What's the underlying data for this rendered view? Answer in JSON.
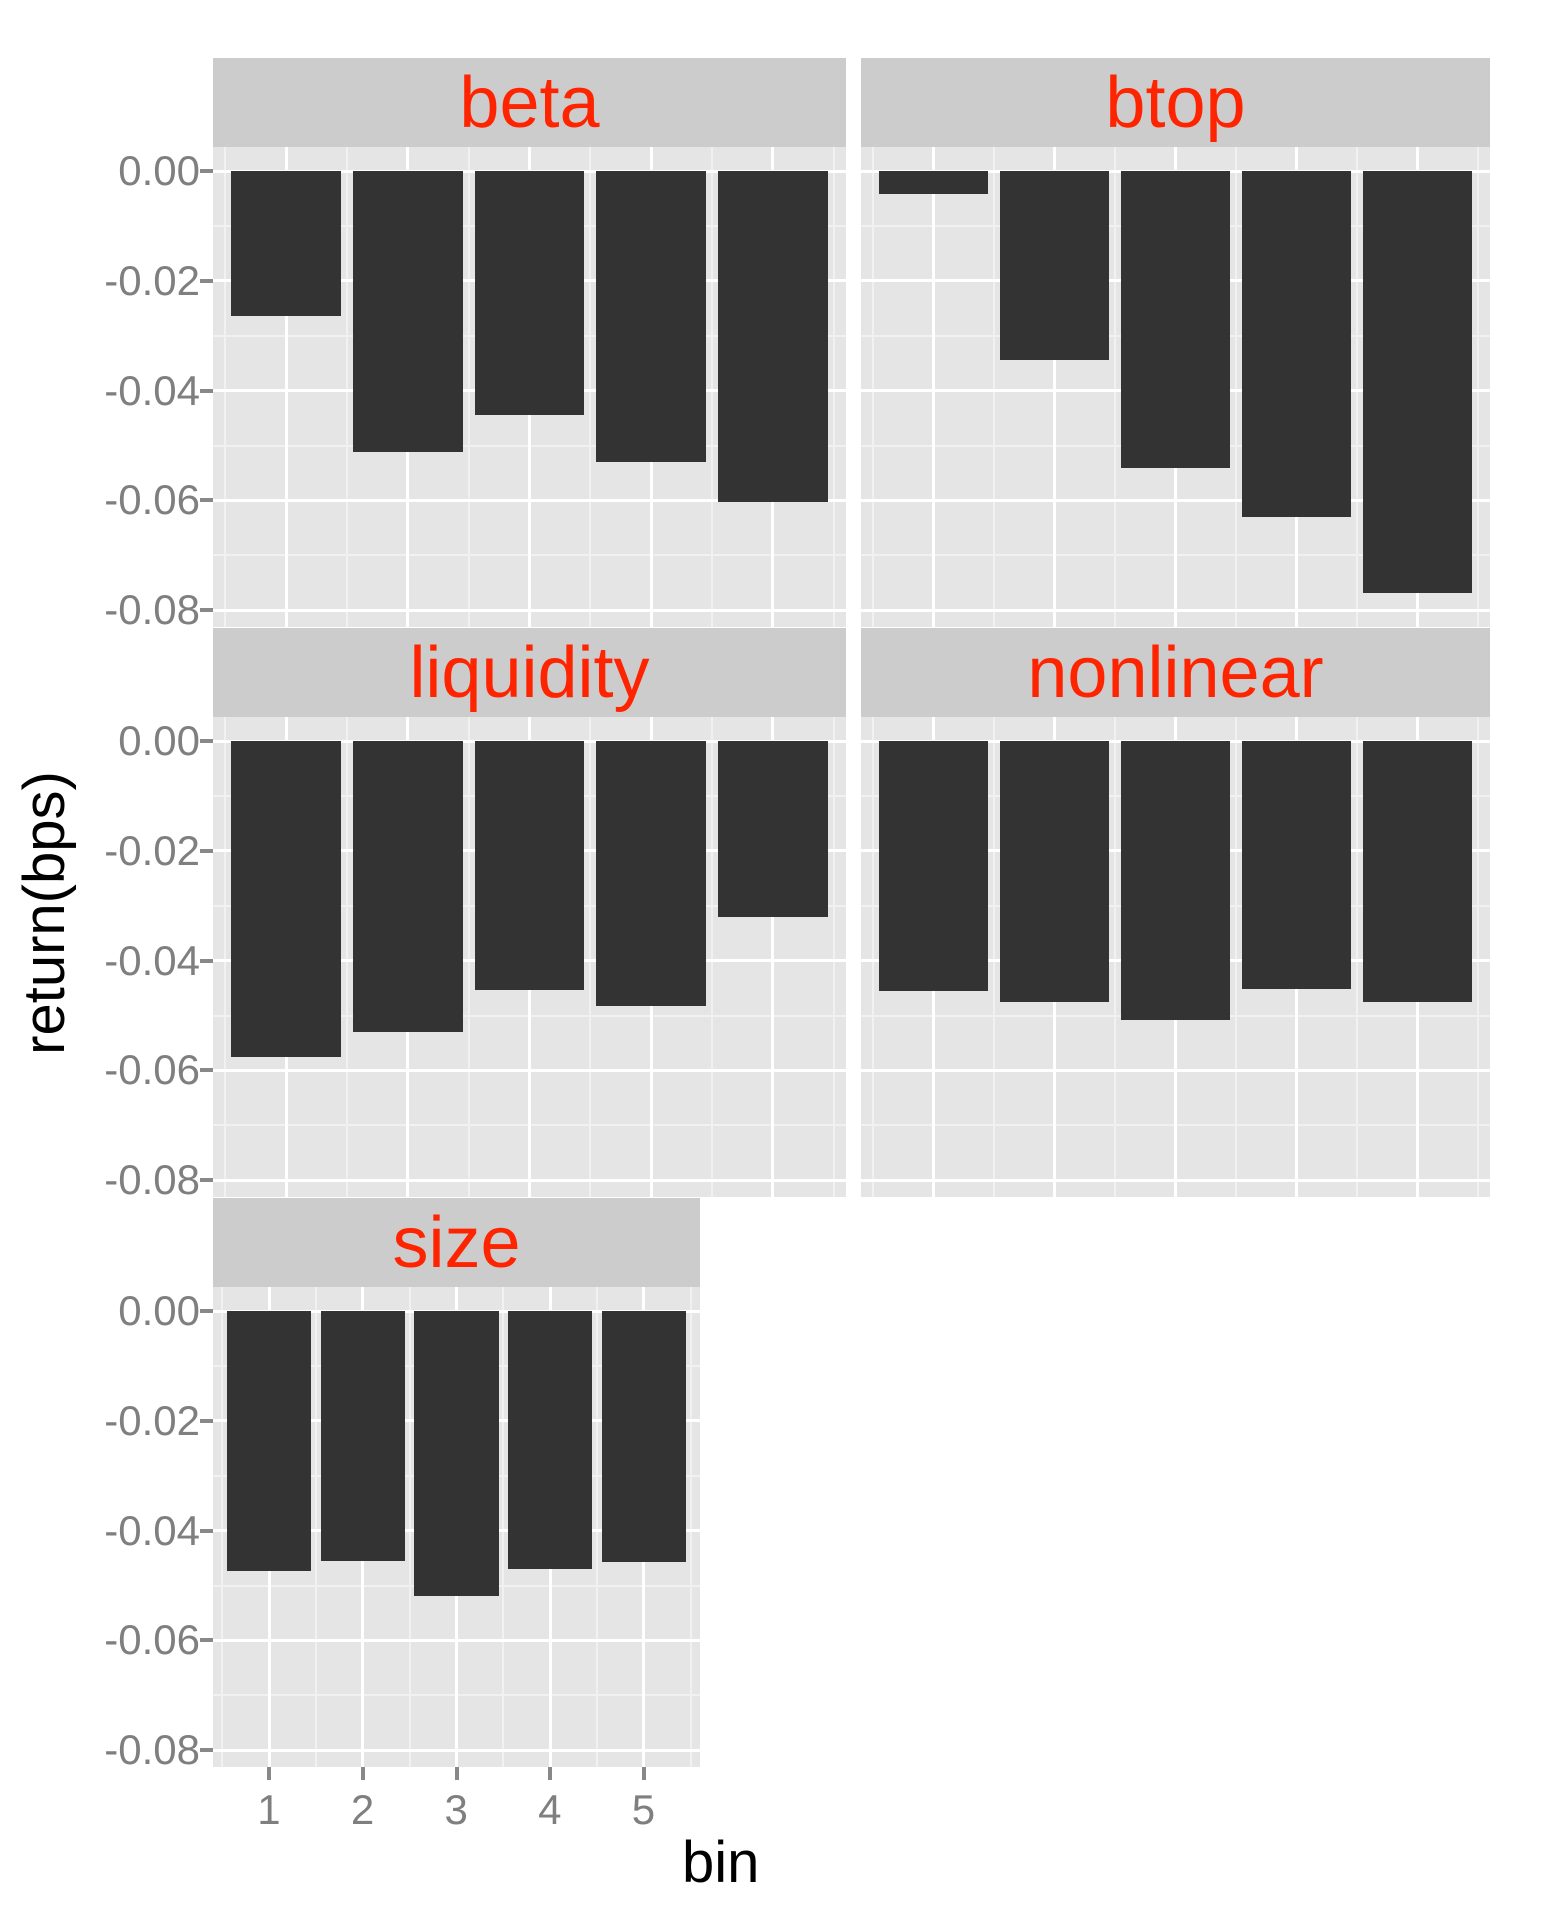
{
  "figure": {
    "y_axis_title": "return(bps)",
    "x_axis_title": "bin",
    "y_tick_labels": [
      "0.00",
      "-0.02",
      "-0.04",
      "-0.06",
      "-0.08"
    ],
    "x_tick_labels": [
      "1",
      "2",
      "3",
      "4",
      "5"
    ]
  },
  "colors": {
    "bar_fill": "#333333",
    "panel_background": "#e5e5e5",
    "strip_background": "#cccccc",
    "strip_text": "#ff2400",
    "grid_major": "#ffffff",
    "grid_minor": "#f1f1f1",
    "tick_text": "#7f7f7f",
    "axis_title_text": "#000000"
  },
  "chart_data": {
    "type": "bar",
    "orientation": "vertical-negative",
    "facet_layout": "wrap-2-columns",
    "categories": [
      "1",
      "2",
      "3",
      "4",
      "5"
    ],
    "xlabel": "bin",
    "ylabel": "return(bps)",
    "ylim": [
      -0.0829,
      0.0045
    ],
    "y_ticks": [
      0.0,
      -0.02,
      -0.04,
      -0.06,
      -0.08
    ],
    "y_minor_ticks": [
      -0.01,
      -0.03,
      -0.05,
      -0.07
    ],
    "grid": "on",
    "legend": "none",
    "facets": [
      {
        "title": "beta",
        "values": [
          -0.0264,
          -0.0512,
          -0.0444,
          -0.053,
          -0.0602
        ]
      },
      {
        "title": "btop",
        "values": [
          -0.0041,
          -0.0345,
          -0.0541,
          -0.063,
          -0.0768
        ]
      },
      {
        "title": "liquidity",
        "values": [
          -0.0575,
          -0.053,
          -0.0453,
          -0.0483,
          -0.032
        ]
      },
      {
        "title": "nonlinear",
        "values": [
          -0.0456,
          -0.0475,
          -0.0508,
          -0.0452,
          -0.0475
        ]
      },
      {
        "title": "size",
        "values": [
          -0.0473,
          -0.0455,
          -0.0519,
          -0.047,
          -0.0457
        ]
      }
    ]
  }
}
